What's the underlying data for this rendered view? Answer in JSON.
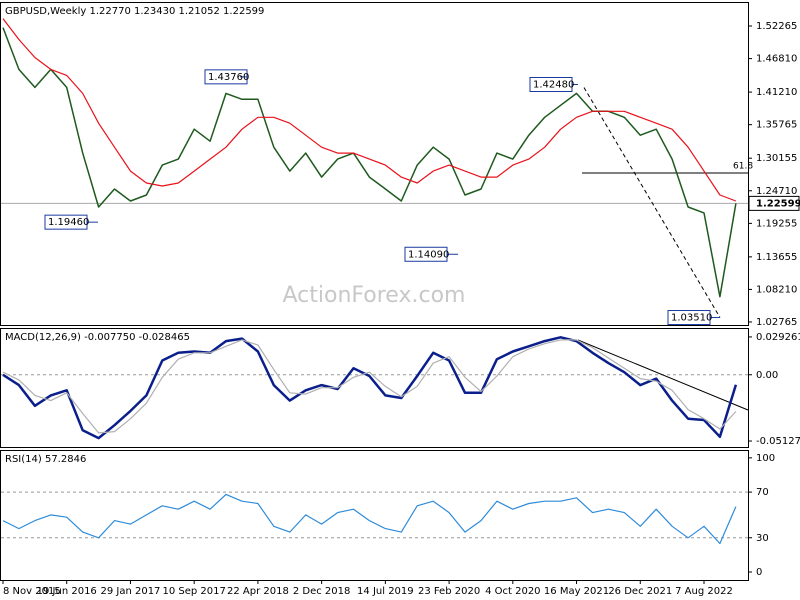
{
  "chart_data": [
    {
      "type": "line",
      "title": "GBPUSD,Weekly  1.22770 1.23430 1.21052 1.22599",
      "watermark": "ActionForex.com",
      "categories": [
        "8 Nov 2015",
        null,
        null,
        null,
        "19 Jun 2016",
        null,
        null,
        null,
        "29 Jan 2017",
        null,
        null,
        null,
        "10 Sep 2017",
        null,
        null,
        null,
        "22 Apr 2018",
        null,
        null,
        null,
        "2 Dec 2018",
        null,
        null,
        null,
        "14 Jul 2019",
        null,
        null,
        null,
        "23 Feb 2020",
        null,
        null,
        null,
        "4 Oct 2020",
        null,
        null,
        null,
        "16 May 2021",
        null,
        null,
        null,
        "26 Dec 2021",
        null,
        null,
        null,
        "7 Aug 2022",
        null,
        null
      ],
      "series": [
        {
          "color": "#1e5a1e",
          "values": [
            1.52,
            1.45,
            1.42,
            1.45,
            1.42,
            1.31,
            1.22,
            1.25,
            1.23,
            1.24,
            1.29,
            1.3,
            1.35,
            1.33,
            1.41,
            1.4,
            1.4,
            1.32,
            1.28,
            1.31,
            1.27,
            1.3,
            1.31,
            1.27,
            1.25,
            1.23,
            1.29,
            1.32,
            1.3,
            1.24,
            1.25,
            1.31,
            1.3,
            1.34,
            1.37,
            1.39,
            1.41,
            1.38,
            1.38,
            1.37,
            1.34,
            1.35,
            1.3,
            1.22,
            1.21,
            1.07,
            1.22599
          ]
        },
        {
          "color": "#e8121b",
          "values": [
            1.535,
            1.5,
            1.47,
            1.45,
            1.44,
            1.41,
            1.36,
            1.32,
            1.28,
            1.26,
            1.255,
            1.26,
            1.28,
            1.3,
            1.32,
            1.35,
            1.37,
            1.37,
            1.36,
            1.34,
            1.32,
            1.31,
            1.31,
            1.3,
            1.29,
            1.27,
            1.26,
            1.28,
            1.29,
            1.28,
            1.27,
            1.27,
            1.29,
            1.3,
            1.32,
            1.35,
            1.37,
            1.38,
            1.38,
            1.38,
            1.37,
            1.36,
            1.35,
            1.32,
            1.28,
            1.24,
            1.23
          ]
        }
      ],
      "ylim": [
        1.0226,
        1.5611
      ],
      "yticks": [
        {
          "value": 1.52265,
          "label": "1.52265"
        },
        {
          "value": 1.4681,
          "label": "1.46810"
        },
        {
          "value": 1.4121,
          "label": "1.41210"
        },
        {
          "value": 1.35765,
          "label": "1.35765"
        },
        {
          "value": 1.30155,
          "label": "1.30155"
        },
        {
          "value": 1.2471,
          "label": "1.24710"
        },
        {
          "value": 1.19255,
          "label": "1.19255"
        },
        {
          "value": 1.13655,
          "label": "1.13655"
        },
        {
          "value": 1.0821,
          "label": "1.08210"
        },
        {
          "value": 1.02765,
          "label": "1.02765"
        }
      ],
      "last_price": {
        "value": 1.22599,
        "label": "1.22599"
      },
      "annotations": [
        {
          "value": 1.1946,
          "label": "1.19460"
        },
        {
          "value": 1.4376,
          "label": "1.43760"
        },
        {
          "value": 1.1409,
          "label": "1.14090"
        },
        {
          "value": 1.4248,
          "label": "1.42480"
        },
        {
          "value": 1.0351,
          "label": "1.03510"
        }
      ],
      "fib": {
        "value": 1.2768,
        "label": "61.8"
      }
    },
    {
      "type": "macd",
      "title": "MACD(12,26,9) -0.007750 -0.028465",
      "series": [
        {
          "color": "#0b1f8c",
          "values": [
            0,
            -0.008,
            -0.024,
            -0.016,
            -0.012,
            -0.043,
            -0.049,
            -0.039,
            -0.028,
            -0.016,
            0.011,
            0.017,
            0.018,
            0.017,
            0.026,
            0.028,
            0.018,
            -0.008,
            -0.02,
            -0.012,
            -0.008,
            -0.011,
            0.005,
            -0.001,
            -0.016,
            -0.018,
            -0.001,
            0.017,
            0.011,
            -0.014,
            -0.014,
            0.012,
            0.018,
            0.022,
            0.026,
            0.029,
            0.026,
            0.017,
            0.009,
            0.002,
            -0.008,
            -0.003,
            -0.02,
            -0.034,
            -0.035,
            -0.048,
            -0.00775
          ]
        },
        {
          "color": "#b0b0b0",
          "values": [
            0.002,
            -0.004,
            -0.016,
            -0.02,
            -0.014,
            -0.03,
            -0.045,
            -0.044,
            -0.034,
            -0.022,
            -0.002,
            0.012,
            0.017,
            0.017,
            0.022,
            0.027,
            0.023,
            0.004,
            -0.014,
            -0.015,
            -0.01,
            -0.01,
            -0.002,
            0.002,
            -0.009,
            -0.017,
            -0.009,
            0.009,
            0.014,
            -0.002,
            -0.013,
            -0.001,
            0.014,
            0.02,
            0.024,
            0.027,
            0.027,
            0.021,
            0.013,
            0.005,
            -0.003,
            -0.005,
            -0.012,
            -0.027,
            -0.034,
            -0.042,
            -0.028465
          ]
        }
      ],
      "ylim": [
        -0.0559,
        0.0354
      ],
      "yticks": [
        {
          "value": 0.029261,
          "label": "0.029261"
        },
        {
          "value": 0,
          "label": "0.00"
        },
        {
          "value": -0.051279,
          "label": "-0.051279"
        }
      ]
    },
    {
      "type": "rsi",
      "title": "RSI(14) 57.2846",
      "series": [
        {
          "color": "#2e8bd8",
          "values": [
            45,
            38,
            45,
            50,
            48,
            35,
            30,
            45,
            42,
            50,
            58,
            55,
            62,
            55,
            68,
            62,
            60,
            40,
            35,
            50,
            42,
            52,
            55,
            45,
            38,
            35,
            58,
            62,
            52,
            35,
            45,
            62,
            55,
            60,
            62,
            62,
            65,
            52,
            55,
            52,
            40,
            55,
            40,
            30,
            40,
            25,
            57.2846
          ]
        }
      ],
      "ylim": [
        -7,
        106
      ],
      "yticks": [
        0,
        30,
        70,
        100
      ],
      "grid_ticks": [
        30,
        70
      ]
    }
  ]
}
